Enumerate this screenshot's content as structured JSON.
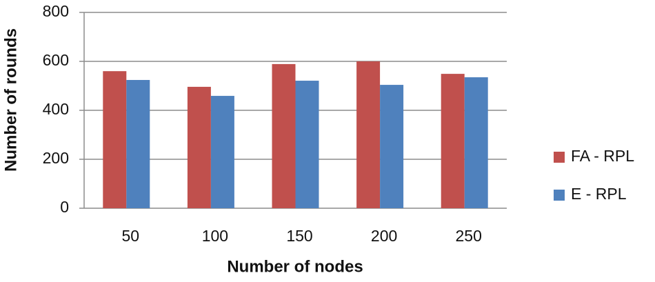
{
  "chart_data": {
    "type": "bar",
    "x_label": "Number of  nodes",
    "y_label": "Number of rounds",
    "categories": [
      "50",
      "100",
      "150",
      "200",
      "250"
    ],
    "series": [
      {
        "name": "FA - RPL",
        "color": "#c0504d",
        "values": [
          560,
          496,
          589,
          600,
          549
        ]
      },
      {
        "name": "E - RPL",
        "color": "#4f81bd",
        "values": [
          524,
          459,
          521,
          504,
          535
        ]
      }
    ],
    "ylim": [
      0,
      800
    ],
    "yticks": [
      0,
      200,
      400,
      600,
      800
    ],
    "grid": true,
    "legend": "right"
  }
}
